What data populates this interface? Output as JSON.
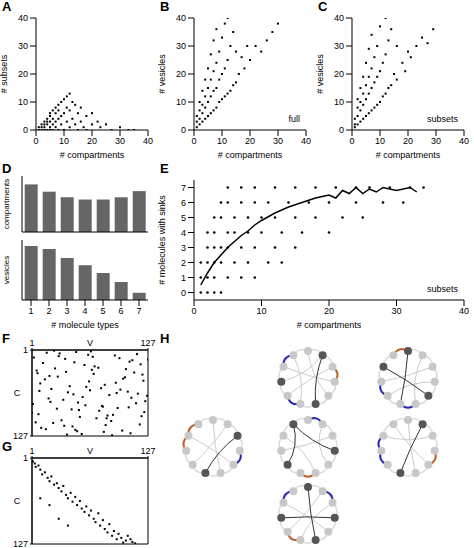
{
  "chart_data": [
    {
      "title": "A",
      "type": "scatter",
      "xlabel": "# compartments",
      "ylabel": "# subsets",
      "xlim": [
        0,
        40
      ],
      "ylim": [
        0,
        40
      ],
      "xticks": [
        0,
        10,
        20,
        30,
        40
      ],
      "yticks": [
        0,
        10,
        20,
        30,
        40
      ],
      "series": [
        {
          "type": "scatter",
          "color": "#000000",
          "marker": "square",
          "x": [
            1,
            1,
            2,
            2,
            2,
            3,
            3,
            3,
            3,
            4,
            4,
            4,
            4,
            5,
            5,
            5,
            5,
            5,
            6,
            6,
            6,
            6,
            7,
            7,
            7,
            7,
            8,
            8,
            8,
            8,
            9,
            9,
            9,
            10,
            10,
            10,
            11,
            11,
            11,
            12,
            12,
            12,
            13,
            13,
            14,
            14,
            15,
            15,
            16,
            16,
            17,
            18,
            18,
            20,
            20,
            22,
            23,
            25,
            27,
            30,
            33,
            35
          ],
          "values": [
            0,
            1,
            0,
            1,
            2,
            0,
            1,
            2,
            3,
            0,
            2,
            3,
            4,
            0,
            1,
            3,
            5,
            6,
            0,
            2,
            4,
            7,
            1,
            3,
            6,
            8,
            0,
            4,
            7,
            9,
            2,
            5,
            10,
            0,
            6,
            11,
            3,
            8,
            12,
            1,
            7,
            13,
            4,
            10,
            2,
            9,
            0,
            6,
            3,
            8,
            1,
            0,
            5,
            2,
            6,
            3,
            1,
            2,
            0,
            1,
            0,
            0
          ]
        }
      ]
    },
    {
      "title": "B",
      "type": "scatter",
      "xlabel": "# compartments",
      "ylabel": "# vesicles",
      "annotations": [
        "full"
      ],
      "xlim": [
        0,
        40
      ],
      "ylim": [
        0,
        40
      ],
      "xticks": [
        0,
        10,
        20,
        30,
        40
      ],
      "yticks": [
        0,
        10,
        20,
        30,
        40
      ],
      "series": [
        {
          "type": "scatter",
          "color": "#000000",
          "marker": "square",
          "x": [
            1,
            1,
            1,
            2,
            2,
            2,
            2,
            3,
            3,
            3,
            3,
            4,
            4,
            4,
            4,
            5,
            5,
            5,
            5,
            6,
            6,
            6,
            6,
            7,
            7,
            7,
            7,
            8,
            8,
            8,
            8,
            9,
            9,
            9,
            10,
            10,
            10,
            11,
            11,
            11,
            12,
            12,
            12,
            13,
            13,
            14,
            14,
            15,
            15,
            16,
            17,
            18,
            19,
            20,
            22,
            24,
            26,
            28,
            30
          ],
          "values": [
            1,
            3,
            5,
            2,
            4,
            7,
            10,
            3,
            6,
            9,
            14,
            4,
            8,
            12,
            18,
            5,
            10,
            15,
            22,
            6,
            12,
            18,
            27,
            7,
            14,
            21,
            32,
            8,
            15,
            24,
            36,
            10,
            18,
            28,
            11,
            20,
            33,
            12,
            22,
            38,
            13,
            25,
            40,
            14,
            30,
            16,
            35,
            17,
            28,
            20,
            26,
            22,
            30,
            25,
            30,
            28,
            32,
            35,
            38
          ]
        }
      ]
    },
    {
      "title": "C",
      "type": "scatter",
      "xlabel": "# compartments",
      "ylabel": "# vesicles",
      "annotations": [
        "subsets"
      ],
      "xlim": [
        0,
        40
      ],
      "ylim": [
        0,
        40
      ],
      "xticks": [
        0,
        10,
        20,
        30,
        40
      ],
      "yticks": [
        0,
        10,
        20,
        30,
        40
      ],
      "series": [
        {
          "type": "scatter",
          "color": "#000000",
          "marker": "square",
          "x": [
            1,
            1,
            1,
            2,
            2,
            2,
            2,
            3,
            3,
            3,
            3,
            4,
            4,
            4,
            4,
            5,
            5,
            5,
            5,
            6,
            6,
            6,
            6,
            7,
            7,
            7,
            7,
            8,
            8,
            8,
            9,
            9,
            9,
            10,
            10,
            10,
            11,
            11,
            12,
            12,
            12,
            13,
            13,
            14,
            14,
            15,
            16,
            16,
            18,
            19,
            20,
            21,
            23,
            25,
            27,
            29
          ],
          "values": [
            1,
            2,
            4,
            2,
            5,
            8,
            11,
            3,
            7,
            10,
            15,
            4,
            9,
            13,
            19,
            5,
            11,
            16,
            24,
            6,
            13,
            19,
            29,
            7,
            15,
            22,
            34,
            8,
            17,
            26,
            9,
            19,
            30,
            10,
            21,
            37,
            12,
            24,
            13,
            27,
            40,
            15,
            32,
            16,
            36,
            20,
            18,
            30,
            24,
            21,
            28,
            26,
            30,
            33,
            31,
            36
          ]
        }
      ]
    },
    {
      "title": "D",
      "type": "bar",
      "ylabel": "compartments",
      "categories": [
        "1",
        "2",
        "3",
        "4",
        "5",
        "6",
        "7"
      ],
      "values": [
        0.85,
        0.72,
        0.62,
        0.58,
        0.58,
        0.62,
        0.73
      ],
      "ylim": [
        0,
        1
      ],
      "color": "#666666",
      "tick_labels": false
    },
    {
      "type": "bar",
      "ylabel": "vesicles",
      "xlabel": "# molecule types",
      "categories": [
        "1",
        "2",
        "3",
        "4",
        "5",
        "6",
        "7"
      ],
      "values": [
        0.9,
        0.85,
        0.7,
        0.58,
        0.45,
        0.3,
        0.12
      ],
      "ylim": [
        0,
        1
      ],
      "color": "#666666",
      "tick_labels": "x"
    },
    {
      "title": "E",
      "type": "scatter",
      "xlabel": "# compartments",
      "ylabel": "# molecules with sinks",
      "annotations": [
        "subsets"
      ],
      "xlim": [
        0,
        40
      ],
      "ylim": [
        -0.5,
        7.5
      ],
      "xticks": [
        0,
        10,
        20,
        30,
        40
      ],
      "yticks": [
        0,
        1,
        2,
        3,
        4,
        5,
        6,
        7
      ],
      "series": [
        {
          "type": "scatter",
          "color": "#000000",
          "marker": "circle",
          "x": [
            1,
            2,
            3,
            4,
            1,
            2,
            3,
            5,
            7,
            9,
            1,
            2,
            3,
            4,
            6,
            8,
            11,
            13,
            2,
            3,
            4,
            5,
            7,
            9,
            12,
            15,
            2,
            3,
            5,
            6,
            8,
            10,
            13,
            16,
            20,
            3,
            4,
            6,
            8,
            10,
            12,
            15,
            18,
            22,
            25,
            4,
            5,
            7,
            9,
            11,
            14,
            17,
            20,
            24,
            28,
            31,
            5,
            7,
            9,
            12,
            15,
            18,
            21,
            24,
            26,
            29,
            32,
            34
          ],
          "values": [
            0,
            0,
            0,
            0,
            1,
            1,
            1,
            1,
            1,
            1,
            2,
            2,
            2,
            2,
            2,
            2,
            2,
            2,
            3,
            3,
            3,
            3,
            3,
            3,
            3,
            3,
            4,
            4,
            4,
            4,
            4,
            4,
            4,
            4,
            4,
            5,
            5,
            5,
            5,
            5,
            5,
            5,
            5,
            5,
            5,
            6,
            6,
            6,
            6,
            6,
            6,
            6,
            6,
            6,
            6,
            6,
            7,
            7,
            7,
            7,
            7,
            7,
            7,
            7,
            7,
            7,
            7,
            7
          ]
        },
        {
          "type": "line",
          "color": "#000000",
          "line_style": "solid",
          "x": [
            1,
            2,
            3,
            4,
            5,
            6,
            7,
            8,
            9,
            10,
            12,
            14,
            16,
            18,
            20,
            21,
            22,
            23,
            24,
            25,
            26,
            27,
            28,
            30,
            32,
            33
          ],
          "values": [
            0.5,
            1.3,
            2,
            2.5,
            3,
            3.4,
            3.8,
            4.1,
            4.5,
            4.8,
            5.3,
            5.7,
            6,
            6.3,
            6.5,
            6.3,
            6.8,
            6.6,
            7,
            6.6,
            6.9,
            6.7,
            7,
            6.8,
            7,
            6.7
          ]
        }
      ]
    },
    {
      "title": "F",
      "type": "matrix",
      "xlabel": "V",
      "ylabel": "C",
      "xlim": [
        1,
        127
      ],
      "ylim": [
        1,
        127
      ],
      "xticks": [
        1,
        127
      ],
      "yticks": [
        1,
        127
      ],
      "series": [
        {
          "type": "scatter",
          "color": "#000000",
          "marker": "square",
          "x": [
            3,
            17,
            29,
            44,
            58,
            71,
            85,
            99,
            112,
            124,
            8,
            22,
            37,
            50,
            63,
            77,
            91,
            105,
            118,
            6,
            19,
            33,
            47,
            60,
            74,
            88,
            102,
            115,
            126,
            11,
            26,
            40,
            53,
            67,
            80,
            94,
            108,
            121,
            2,
            15,
            31,
            45,
            56,
            69,
            83,
            97,
            110,
            123,
            9,
            24,
            38,
            51,
            65,
            79,
            92,
            106,
            119,
            5,
            20,
            35,
            48,
            62,
            76,
            89,
            103,
            116,
            13,
            28,
            42,
            55,
            68,
            82,
            96,
            109,
            122,
            1,
            16,
            30,
            46,
            59,
            73,
            87,
            100,
            114,
            127,
            10,
            25,
            39,
            52,
            66,
            81,
            93,
            107,
            120,
            7,
            21,
            36,
            49,
            64,
            78
          ],
          "values": [
            12,
            5,
            40,
            88,
            23,
            101,
            67,
            119,
            34,
            76,
            95,
            58,
            14,
            120,
            47,
            83,
            9,
            62,
            110,
            31,
            72,
            104,
            19,
            55,
            90,
            126,
            41,
            7,
            68,
            115,
            28,
            63,
            99,
            11,
            52,
            86,
            123,
            37,
            80,
            44,
            6,
            113,
            70,
            25,
            97,
            59,
            16,
            92,
            61,
            108,
            33,
            78,
            3,
            121,
            49,
            85,
            22,
            107,
            39,
            74,
            118,
            8,
            57,
            96,
            29,
            65,
            20,
            87,
            54,
            124,
            36,
            101,
            13,
            71,
            46,
            93,
            117,
            10,
            66,
            82,
            27,
            105,
            43,
            79,
            15,
            50,
            2,
            125,
            89,
            30,
            111,
            64,
            18,
            98,
            35,
            77,
            112,
            4,
            60,
            84
          ]
        }
      ]
    },
    {
      "title": "G",
      "type": "matrix",
      "xlabel": "V",
      "ylabel": "C",
      "xlim": [
        1,
        127
      ],
      "ylim": [
        1,
        127
      ],
      "xticks": [
        1,
        127
      ],
      "yticks": [
        1,
        127
      ],
      "series": [
        {
          "type": "scatter",
          "color": "#000000",
          "marker": "square",
          "x": [
            2,
            4,
            5,
            8,
            10,
            12,
            15,
            18,
            20,
            22,
            25,
            28,
            30,
            33,
            35,
            38,
            40,
            43,
            45,
            48,
            50,
            53,
            55,
            58,
            60,
            63,
            65,
            68,
            70,
            73,
            75,
            78,
            80,
            83,
            85,
            88,
            90,
            93,
            95,
            98,
            100,
            103,
            105,
            108,
            110,
            113,
            10,
            20,
            30,
            40
          ],
          "values": [
            6,
            9,
            14,
            12,
            18,
            25,
            22,
            30,
            35,
            28,
            40,
            38,
            45,
            50,
            42,
            55,
            60,
            52,
            65,
            58,
            70,
            64,
            75,
            80,
            72,
            85,
            78,
            90,
            95,
            82,
            100,
            92,
            105,
            110,
            98,
            115,
            108,
            120,
            112,
            118,
            125,
            122,
            115,
            120,
            124,
            126,
            60,
            70,
            90,
            100
          ]
        }
      ]
    }
  ],
  "diagram": {
    "title": "H"
  }
}
